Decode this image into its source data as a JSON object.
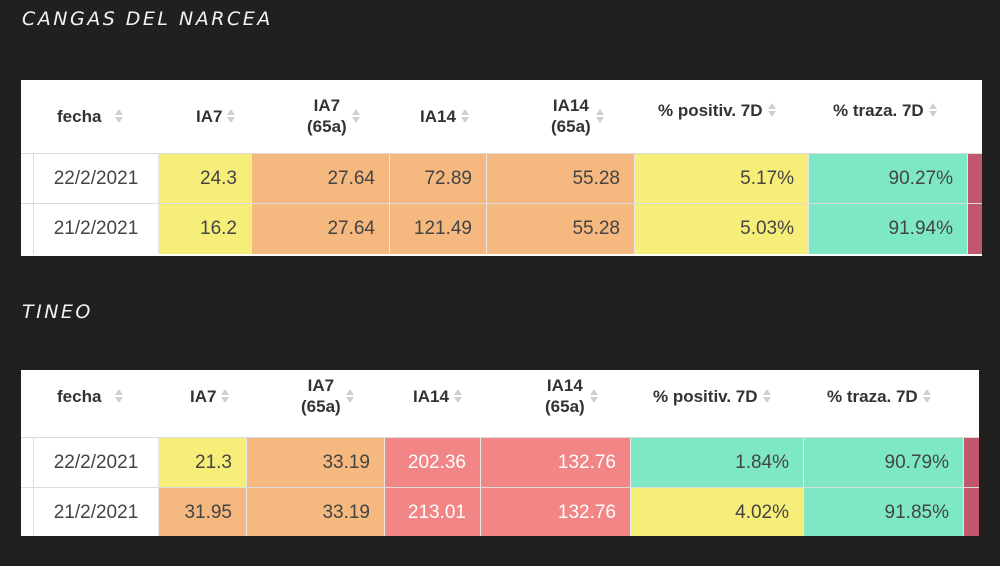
{
  "colors": {
    "yellow": "#f7ee79",
    "orange": "#f5b87f",
    "red": "#f28585",
    "green": "#7ee8c6",
    "edge": "#c2566d",
    "background": "#221f1f"
  },
  "headers": {
    "fecha": "fecha",
    "ia7": "IA7",
    "ia7_65_line1": "IA7",
    "ia7_65_line2": "(65a)",
    "ia14": "IA14",
    "ia14_65_line1": "IA14",
    "ia14_65_line2": "(65a)",
    "positiv": "% positiv. 7D",
    "traza": "% traza. 7D"
  },
  "tables": [
    {
      "title": "CANGAS DEL NARCEA",
      "rows": [
        {
          "fecha": "22/2/2021",
          "ia7": "24.3",
          "ia7_65": "27.64",
          "ia14": "72.89",
          "ia14_65": "55.28",
          "positiv": "5.17%",
          "traza": "90.27%"
        },
        {
          "fecha": "21/2/2021",
          "ia7": "16.2",
          "ia7_65": "27.64",
          "ia14": "121.49",
          "ia14_65": "55.28",
          "positiv": "5.03%",
          "traza": "91.94%"
        }
      ]
    },
    {
      "title": "TINEO",
      "rows": [
        {
          "fecha": "22/2/2021",
          "ia7": "21.3",
          "ia7_65": "33.19",
          "ia14": "202.36",
          "ia14_65": "132.76",
          "positiv": "1.84%",
          "traza": "90.79%"
        },
        {
          "fecha": "21/2/2021",
          "ia7": "31.95",
          "ia7_65": "33.19",
          "ia14": "213.01",
          "ia14_65": "132.76",
          "positiv": "4.02%",
          "traza": "91.85%"
        }
      ]
    }
  ]
}
